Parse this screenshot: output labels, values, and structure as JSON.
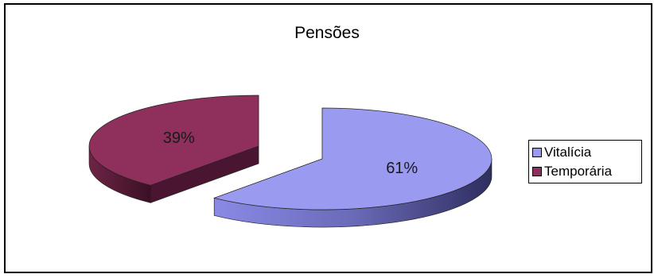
{
  "chart_data": {
    "type": "pie",
    "title": "Pensões",
    "categories": [
      "Vitalícia",
      "Temporária"
    ],
    "values": [
      61,
      39
    ],
    "data_labels": [
      "61%",
      "39%"
    ],
    "colors": [
      "#9A9AF0",
      "#8E2F5C"
    ],
    "legend": "right",
    "exploded": true,
    "three_d": true
  }
}
